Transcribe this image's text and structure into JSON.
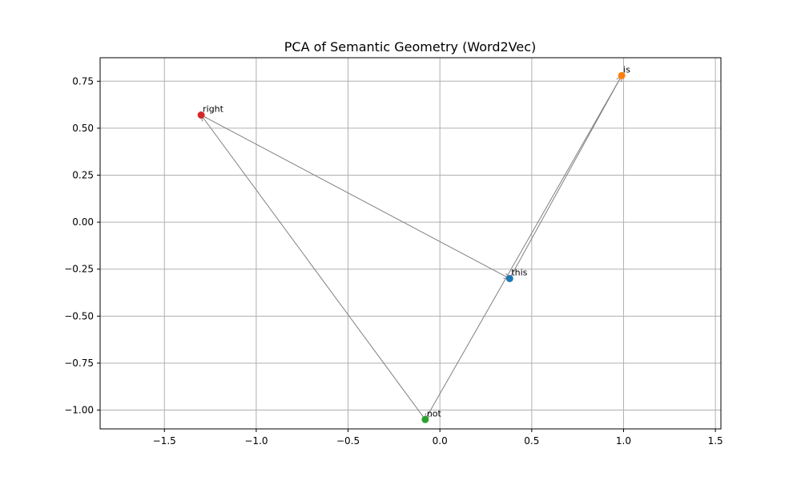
{
  "chart_data": {
    "type": "scatter",
    "title": "PCA of Semantic Geometry (Word2Vec)",
    "xlabel": "",
    "ylabel": "",
    "xlim": [
      -1.85,
      1.53
    ],
    "ylim": [
      -1.1,
      0.875
    ],
    "grid": true,
    "x_ticks": [
      -1.5,
      -1.0,
      -0.5,
      0.0,
      0.5,
      1.0,
      1.5
    ],
    "x_tick_labels": [
      "−1.5",
      "−1.0",
      "−0.5",
      "0.0",
      "0.5",
      "1.0",
      "1.5"
    ],
    "y_ticks": [
      0.75,
      0.5,
      0.25,
      0.0,
      -0.25,
      -0.5,
      -0.75,
      -1.0
    ],
    "y_tick_labels": [
      "0.75",
      "0.50",
      "0.25",
      "0.00",
      "−0.25",
      "−0.50",
      "−0.75",
      "−1.00"
    ],
    "points": [
      {
        "label": "this",
        "x": 0.38,
        "y": -0.3,
        "color": "#1f77b4"
      },
      {
        "label": "is",
        "x": 0.99,
        "y": 0.78,
        "color": "#ff7f0e"
      },
      {
        "label": "not",
        "x": -0.08,
        "y": -1.05,
        "color": "#2ca02c"
      },
      {
        "label": "right",
        "x": -1.3,
        "y": 0.57,
        "color": "#d62728"
      }
    ],
    "arrows": [
      {
        "from": "this",
        "to": "is"
      },
      {
        "from": "is",
        "to": "not"
      },
      {
        "from": "not",
        "to": "right"
      },
      {
        "from": "right",
        "to": "this"
      }
    ],
    "arrow_color": "#808080",
    "grid_color": "#b0b0b0"
  }
}
